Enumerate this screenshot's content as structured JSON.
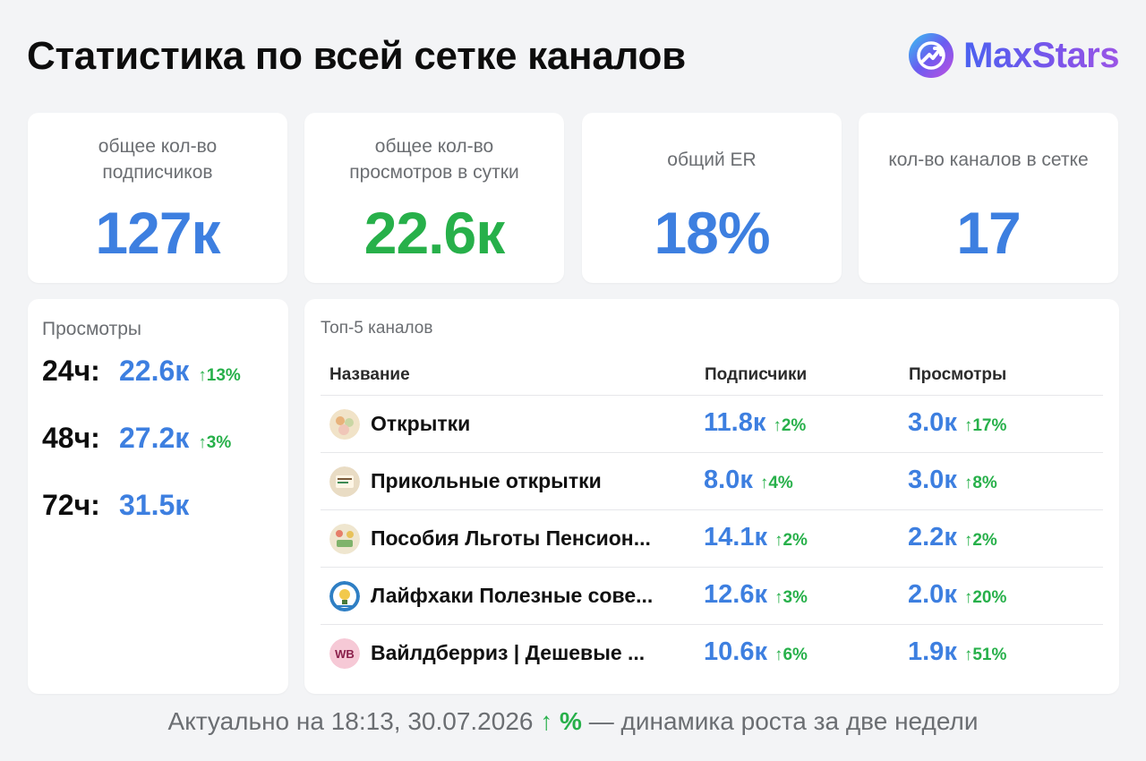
{
  "header": {
    "title": "Статистика по всей сетке каналов",
    "brand": "MaxStars"
  },
  "stats": [
    {
      "label": "общее кол-во подписчиков",
      "value": "127к",
      "color": "#3d7fe0"
    },
    {
      "label": "общее кол-во просмотров в сутки",
      "value": "22.6к",
      "color": "#27b04a"
    },
    {
      "label": "общий ER",
      "value": "18%",
      "color": "#3d7fe0"
    },
    {
      "label": "кол-во каналов в сетке",
      "value": "17",
      "color": "#3d7fe0"
    }
  ],
  "views": {
    "title": "Просмотры",
    "rows": [
      {
        "period": "24ч:",
        "value": "22.6к",
        "change": "↑13%"
      },
      {
        "period": "48ч:",
        "value": "27.2к",
        "change": "↑3%"
      },
      {
        "period": "72ч:",
        "value": "31.5к",
        "change": ""
      }
    ]
  },
  "top5": {
    "title": "Топ-5 каналов",
    "columns": {
      "name": "Название",
      "subscribers": "Подписчики",
      "views": "Просмотры"
    },
    "rows": [
      {
        "name": "Открытки",
        "subs": "11.8к",
        "subs_change": "↑2%",
        "views": "3.0к",
        "views_change": "↑17%",
        "avatar": "postcards-avatar"
      },
      {
        "name": "Прикольные открытки",
        "subs": "8.0к",
        "subs_change": "↑4%",
        "views": "3.0к",
        "views_change": "↑8%",
        "avatar": "funny-postcards-avatar"
      },
      {
        "name": "Пособия Льготы Пенсион...",
        "subs": "14.1к",
        "subs_change": "↑2%",
        "views": "2.2к",
        "views_change": "↑2%",
        "avatar": "benefits-avatar"
      },
      {
        "name": "Лайфхаки Полезные сове...",
        "subs": "12.6к",
        "subs_change": "↑3%",
        "views": "2.0к",
        "views_change": "↑20%",
        "avatar": "lifehacks-avatar"
      },
      {
        "name": "Вайлдберриз | Дешевые ...",
        "subs": "10.6к",
        "subs_change": "↑6%",
        "views": "1.9к",
        "views_change": "↑51%",
        "avatar": "wb-avatar",
        "avatar_text": "WB"
      }
    ]
  },
  "footer": {
    "prefix": "Актуально на 18:13, 30.07.2026",
    "legend_marker": "↑ %",
    "suffix": "— динамика роста за две недели"
  },
  "colors": {
    "accent_blue": "#3d7fe0",
    "accent_green": "#27b04a",
    "muted": "#6b6e72",
    "background": "#f3f4f6"
  }
}
